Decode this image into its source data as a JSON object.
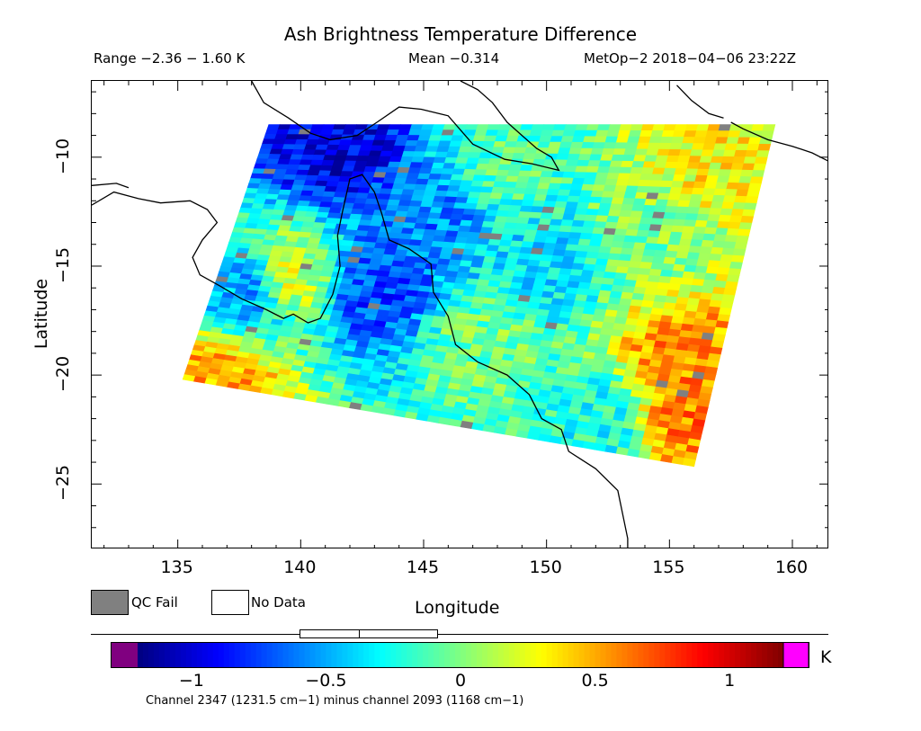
{
  "header": {
    "title": "Ash Brightness Temperature Difference",
    "range": "Range −2.36 − 1.60 K",
    "mean": "Mean −0.314",
    "satellite": "MetOp−2 2018−04−06 23:22Z"
  },
  "legend": {
    "qc_fail": "QC Fail",
    "no_data": "No Data",
    "qc_color": "#808080"
  },
  "colorbar": {
    "unit": "K",
    "caption": "Channel 2347 (1231.5 cm−1) minus channel 2093 (1168 cm−1)",
    "ticks": [
      "−1",
      "−0.5",
      "0",
      "0.5",
      "1"
    ],
    "tick_values": [
      -1,
      -0.5,
      0,
      0.5,
      1
    ],
    "min": -1.2,
    "max": 1.2,
    "under_color": "#800080",
    "over_color": "#ff00ff",
    "colors": [
      "#000080",
      "#0000ff",
      "#0080ff",
      "#00ffff",
      "#80ff80",
      "#ffff00",
      "#ff8000",
      "#ff0000",
      "#800000"
    ]
  },
  "chart_data": {
    "type": "heatmap",
    "title": "Ash Brightness Temperature Difference",
    "xlabel": "Longitude",
    "ylabel": "Latitude",
    "xlim": [
      131.5,
      161.5
    ],
    "ylim": [
      -28,
      -6.5
    ],
    "x_ticks": [
      135,
      140,
      145,
      150,
      155,
      160
    ],
    "x_tick_labels": [
      "135",
      "140",
      "145",
      "150",
      "155",
      "160"
    ],
    "y_ticks": [
      -10,
      -15,
      -20,
      -25
    ],
    "y_tick_labels": [
      "−10",
      "−15",
      "−20",
      "−25"
    ],
    "value_range": [
      -2.36,
      1.6
    ],
    "mean": -0.314,
    "units": "K",
    "swath_corners": [
      [
        138.7,
        -8.5
      ],
      [
        159.3,
        -8.5
      ],
      [
        156.0,
        -24.2
      ],
      [
        135.2,
        -20.2
      ]
    ],
    "regional_values": [
      {
        "lon": 141.5,
        "lat": -9.5,
        "value": -0.95
      },
      {
        "lon": 148.0,
        "lat": -10.5,
        "value": -0.1
      },
      {
        "lon": 157.0,
        "lat": -10.0,
        "value": 0.3
      },
      {
        "lon": 143.0,
        "lat": -16.0,
        "value": -0.75
      },
      {
        "lon": 145.5,
        "lat": -12.5,
        "value": -0.6
      },
      {
        "lon": 147.5,
        "lat": -18.5,
        "value": -0.05
      },
      {
        "lon": 150.0,
        "lat": -15.0,
        "value": -0.35
      },
      {
        "lon": 155.5,
        "lat": -19.0,
        "value": 0.55
      },
      {
        "lon": 156.0,
        "lat": -22.0,
        "value": 0.6
      },
      {
        "lon": 138.0,
        "lat": -16.0,
        "value": -0.5
      },
      {
        "lon": 139.5,
        "lat": -15.5,
        "value": 0.2
      },
      {
        "lon": 136.5,
        "lat": -20.5,
        "value": 0.5
      },
      {
        "lon": 152.0,
        "lat": -22.0,
        "value": -0.25
      },
      {
        "lon": 154.0,
        "lat": -14.0,
        "value": 0.0
      }
    ]
  }
}
